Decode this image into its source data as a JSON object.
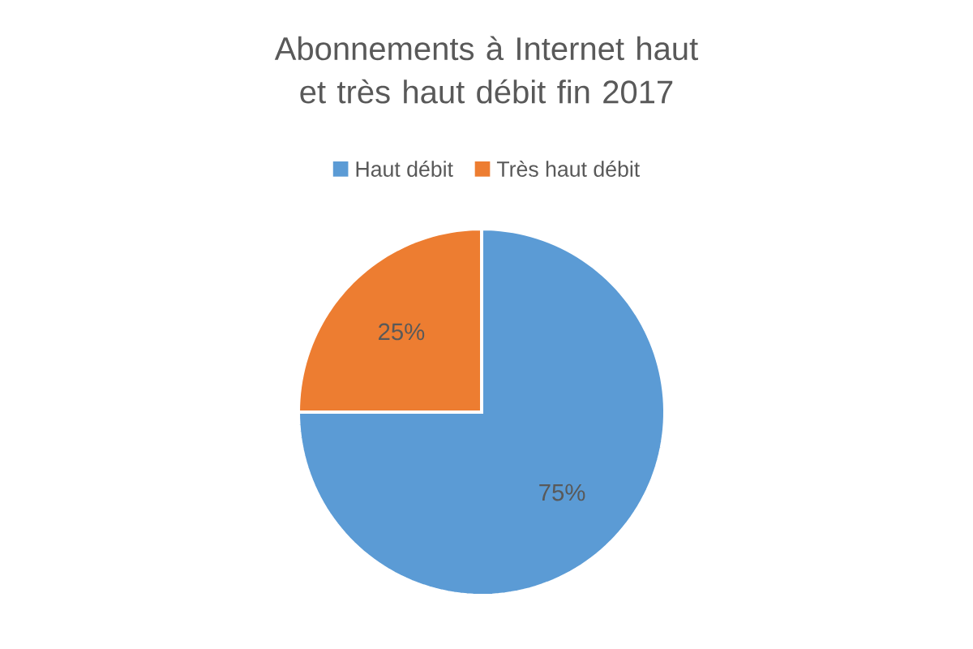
{
  "chart_data": {
    "type": "pie",
    "title": "Abonnements à Internet haut et très haut débit fin 2017",
    "categories": [
      "Haut débit",
      "Très haut débit"
    ],
    "values": [
      75,
      25
    ],
    "colors": [
      "#5b9bd5",
      "#ed7d31"
    ],
    "value_labels": [
      "75%",
      "25%"
    ],
    "legend": "top"
  }
}
